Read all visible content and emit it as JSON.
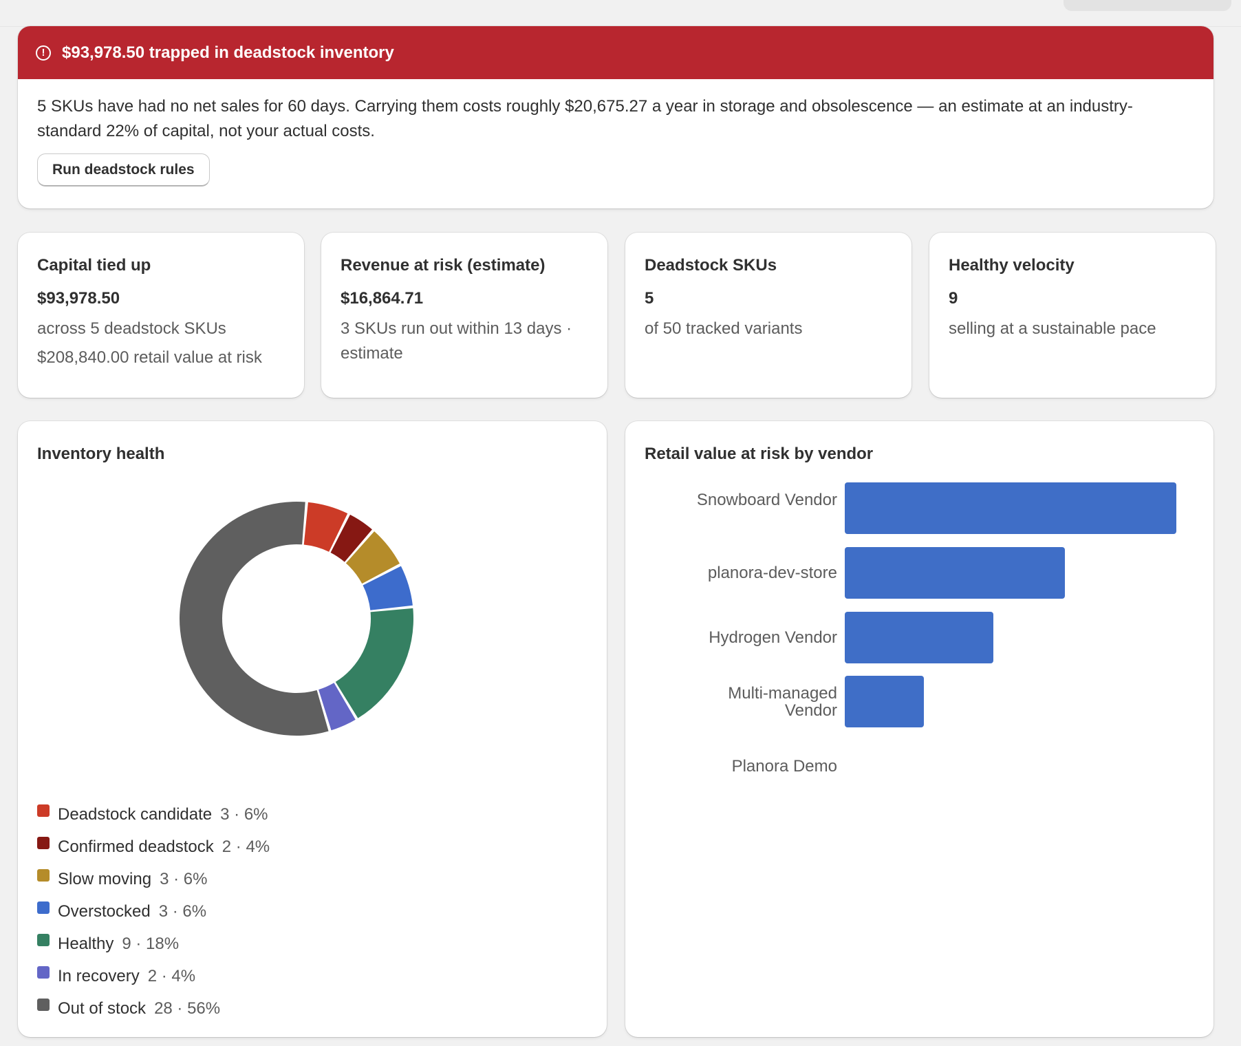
{
  "alert": {
    "icon": "alert-circle-icon",
    "title": "$93,978.50 trapped in deadstock inventory",
    "body": "5 SKUs have had no net sales for 60 days. Carrying them costs roughly $20,675.27 a year in storage and obsolescence — an estimate at an industry-standard 22% of capital, not your actual costs.",
    "button_label": "Run deadstock rules",
    "color": "#b8262f"
  },
  "stats": [
    {
      "title": "Capital tied up",
      "value": "$93,978.50",
      "sub": "across 5 deadstock SKUs",
      "sub2": "$208,840.00 retail value at risk"
    },
    {
      "title": "Revenue at risk (estimate)",
      "value": "$16,864.71",
      "sub": "3 SKUs run out within 13 days · estimate"
    },
    {
      "title": "Deadstock SKUs",
      "value": "5",
      "sub": "of 50 tracked variants"
    },
    {
      "title": "Healthy velocity",
      "value": "9",
      "sub": "selling at a sustainable pace"
    }
  ],
  "inventory_health": {
    "title": "Inventory health",
    "legend": [
      {
        "label": "Deadstock candidate",
        "count": "3 · 6%"
      },
      {
        "label": "Confirmed deadstock",
        "count": "2 · 4%"
      },
      {
        "label": "Slow moving",
        "count": "3 · 6%"
      },
      {
        "label": "Overstocked",
        "count": "3 · 6%"
      },
      {
        "label": "Healthy",
        "count": "9 · 18%"
      },
      {
        "label": "In recovery",
        "count": "2 · 4%"
      },
      {
        "label": "Out of stock",
        "count": "28 · 56%"
      }
    ]
  },
  "vendor_chart": {
    "title": "Retail value at risk by vendor",
    "labels": [
      "Snowboard Vendor",
      "planora-dev-store",
      "Hydrogen Vendor",
      "Multi-managed Vendor",
      "Planora Demo"
    ]
  },
  "chart_data": [
    {
      "type": "pie",
      "title": "Inventory health",
      "categories": [
        "Deadstock candidate",
        "Confirmed deadstock",
        "Slow moving",
        "Overstocked",
        "Healthy",
        "In recovery",
        "Out of stock"
      ],
      "values": [
        3,
        2,
        3,
        3,
        9,
        2,
        28
      ],
      "colors": [
        "#cc3b27",
        "#861813",
        "#b58c2a",
        "#3d6ccc",
        "#358062",
        "#6366c6",
        "#5f5f5f"
      ],
      "donut": true
    },
    {
      "type": "bar",
      "orientation": "horizontal",
      "title": "Retail value at risk by vendor",
      "categories": [
        "Snowboard Vendor",
        "planora-dev-store",
        "Hydrogen Vendor",
        "Multi-managed Vendor",
        "Planora Demo"
      ],
      "values": [
        1.0,
        0.664,
        0.448,
        0.238,
        0
      ],
      "color": "#3f6ec7"
    }
  ]
}
